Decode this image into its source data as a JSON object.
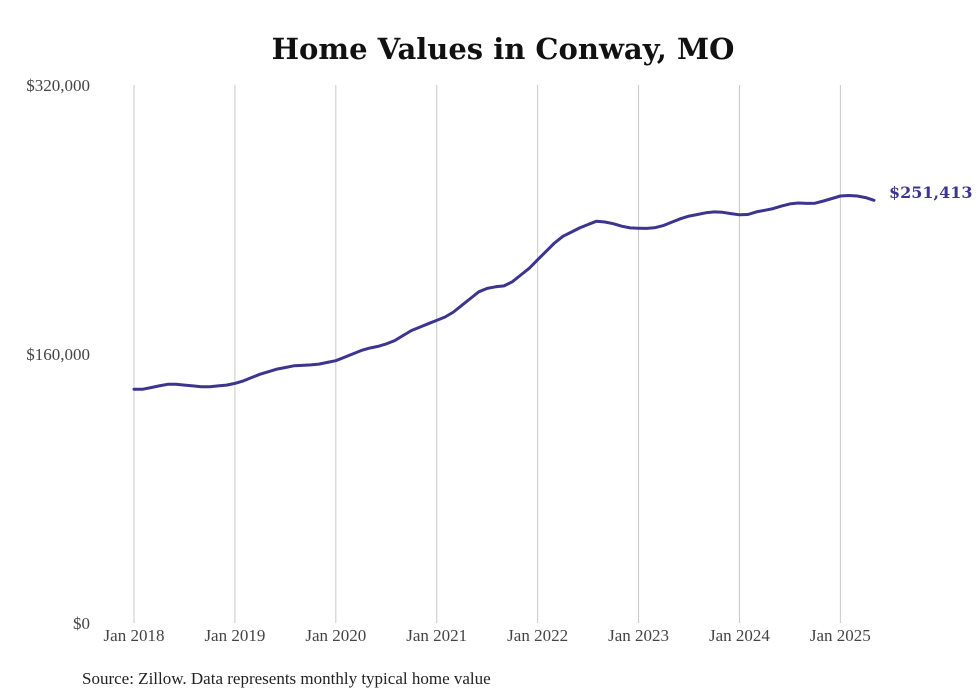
{
  "chart_data": {
    "type": "line",
    "title": "Home Values in Conway, MO",
    "xlabel": "",
    "ylabel": "",
    "source": "Source: Zillow. Data represents monthly typical home value",
    "y_ticks": [
      "$0",
      "$160,000",
      "$320,000"
    ],
    "y_tick_values": [
      0,
      160000,
      320000
    ],
    "ylim": [
      0,
      320000
    ],
    "x_ticks": [
      "Jan 2018",
      "Jan 2019",
      "Jan 2020",
      "Jan 2021",
      "Jan 2022",
      "Jan 2023",
      "Jan 2024",
      "Jan 2025"
    ],
    "x_tick_values": [
      "2018-01",
      "2019-01",
      "2020-01",
      "2021-01",
      "2022-01",
      "2023-01",
      "2024-01",
      "2025-01"
    ],
    "xlim": [
      "2018-01",
      "2025-05"
    ],
    "grid": "vertical",
    "end_label": "$251,413",
    "line_color": "#3b3590",
    "series": [
      {
        "x": [
          "2018-01",
          "2018-02",
          "2018-03",
          "2018-04",
          "2018-05",
          "2018-06",
          "2018-07",
          "2018-08",
          "2018-09",
          "2018-10",
          "2018-11",
          "2018-12",
          "2019-01",
          "2019-02",
          "2019-03",
          "2019-04",
          "2019-05",
          "2019-06",
          "2019-07",
          "2019-08",
          "2019-09",
          "2019-10",
          "2019-11",
          "2019-12",
          "2020-01",
          "2020-02",
          "2020-03",
          "2020-04",
          "2020-05",
          "2020-06",
          "2020-07",
          "2020-08",
          "2020-09",
          "2020-10",
          "2020-11",
          "2020-12",
          "2021-01",
          "2021-02",
          "2021-03",
          "2021-04",
          "2021-05",
          "2021-06",
          "2021-07",
          "2021-08",
          "2021-09",
          "2021-10",
          "2021-11",
          "2021-12",
          "2022-01",
          "2022-02",
          "2022-03",
          "2022-04",
          "2022-05",
          "2022-06",
          "2022-07",
          "2022-08",
          "2022-09",
          "2022-10",
          "2022-11",
          "2022-12",
          "2023-01",
          "2023-02",
          "2023-03",
          "2023-04",
          "2023-05",
          "2023-06",
          "2023-07",
          "2023-08",
          "2023-09",
          "2023-10",
          "2023-11",
          "2023-12",
          "2024-01",
          "2024-02",
          "2024-03",
          "2024-04",
          "2024-05",
          "2024-06",
          "2024-07",
          "2024-08",
          "2024-09",
          "2024-10",
          "2024-11",
          "2024-12",
          "2025-01",
          "2025-02",
          "2025-03",
          "2025-04",
          "2025-05"
        ],
        "values": [
          139000,
          139000,
          140000,
          141000,
          142000,
          142000,
          141500,
          141000,
          140500,
          140500,
          141000,
          141500,
          142500,
          144000,
          146000,
          148000,
          149500,
          151000,
          152000,
          153000,
          153200,
          153500,
          154000,
          155000,
          156000,
          158000,
          160000,
          162000,
          163500,
          164500,
          166000,
          168000,
          171000,
          174000,
          176000,
          178000,
          180000,
          182000,
          185000,
          189000,
          193000,
          197000,
          199000,
          200000,
          200500,
          203000,
          207000,
          211000,
          216000,
          221000,
          226000,
          230000,
          232500,
          235000,
          237000,
          239000,
          238500,
          237500,
          236000,
          235000,
          234800,
          234700,
          235200,
          236500,
          238500,
          240500,
          242000,
          243000,
          244000,
          244500,
          244300,
          243500,
          242800,
          243000,
          244500,
          245500,
          246500,
          248000,
          249300,
          249800,
          249600,
          249700,
          251000,
          252500,
          254000,
          254300,
          254000,
          253000,
          251413
        ]
      }
    ]
  }
}
